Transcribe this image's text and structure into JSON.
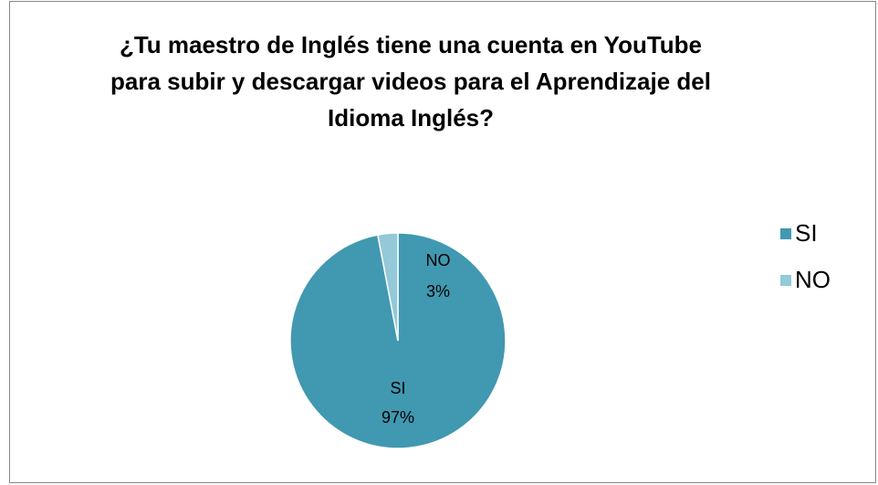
{
  "chart_data": {
    "type": "pie",
    "title": "¿Tu maestro de Inglés tiene una cuenta en YouTube para subir y descargar videos para el Aprendizaje del Idioma Inglés?",
    "categories": [
      "SI",
      "NO"
    ],
    "values": [
      97,
      3
    ],
    "value_labels": [
      "97%",
      "3%"
    ],
    "colors": [
      "#4198b1",
      "#93c9d8"
    ],
    "legend": "right"
  }
}
